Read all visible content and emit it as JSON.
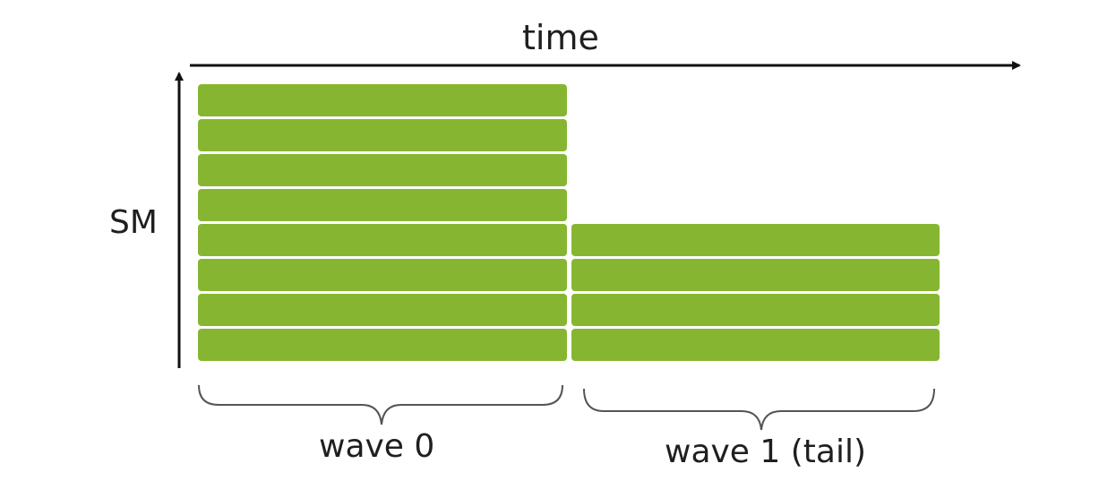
{
  "labels": {
    "time": "time",
    "sm": "SM",
    "wave0": "wave 0",
    "wave1": "wave 1 (tail)"
  },
  "waves": [
    {
      "name": "wave 0",
      "sm_count": 8
    },
    {
      "name": "wave 1 (tail)",
      "sm_count": 4
    }
  ],
  "colors": {
    "block": "#86b631",
    "axis": "#111111",
    "brace": "#555555",
    "text": "#1f1f1f"
  }
}
